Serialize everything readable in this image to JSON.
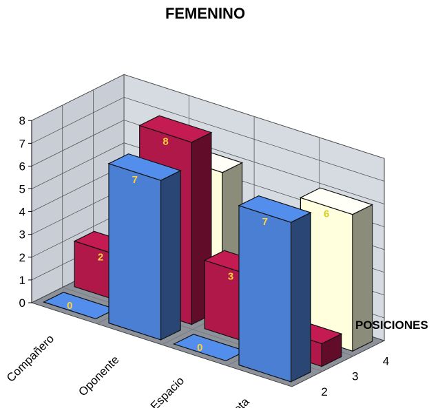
{
  "chart_data": {
    "type": "bar",
    "subtype": "3d-column",
    "title": "FEMENINO",
    "categories": [
      "Compañero",
      "Oponente",
      "Espacio",
      "Pelota"
    ],
    "depth_axis_label": "POSICIONES",
    "depth_ticks": [
      "2",
      "3",
      "4"
    ],
    "ylim": [
      0,
      8
    ],
    "y_ticks": [
      "0",
      "1",
      "2",
      "3",
      "4",
      "5",
      "6",
      "7",
      "8"
    ],
    "grid": true,
    "series": [
      {
        "name": "4",
        "color": "#FFFFDD",
        "values": [
          null,
          6,
          null,
          6
        ],
        "labels": [
          "",
          "6",
          "",
          "6"
        ]
      },
      {
        "name": "3",
        "color": "#B0184A",
        "values": [
          2,
          8,
          3,
          1
        ],
        "labels": [
          "2",
          "8",
          "3",
          "1"
        ]
      },
      {
        "name": "2",
        "color": "#4A7FD4",
        "values": [
          0,
          7,
          0,
          7
        ],
        "labels": [
          "0",
          "7",
          "0",
          "7"
        ]
      }
    ]
  }
}
